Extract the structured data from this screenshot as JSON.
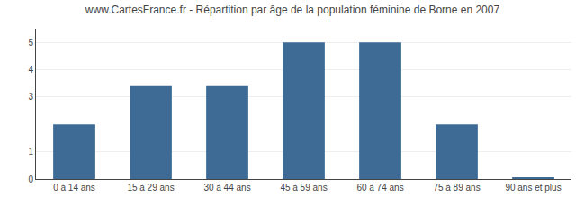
{
  "chart_data": {
    "type": "bar",
    "title": "www.CartesFrance.fr - Répartition par âge de la population féminine de Borne en 2007",
    "categories": [
      "0 à 14 ans",
      "15 à 29 ans",
      "30 à 44 ans",
      "45 à 59 ans",
      "60 à 74 ans",
      "75 à 89 ans",
      "90 ans et plus"
    ],
    "values": [
      2,
      3.4,
      3.4,
      5,
      5,
      2,
      0.05
    ],
    "color": "#3d6b96",
    "ylim": [
      0,
      5.5
    ],
    "yticks": [
      0,
      1,
      3,
      4,
      5
    ],
    "grid": true
  }
}
